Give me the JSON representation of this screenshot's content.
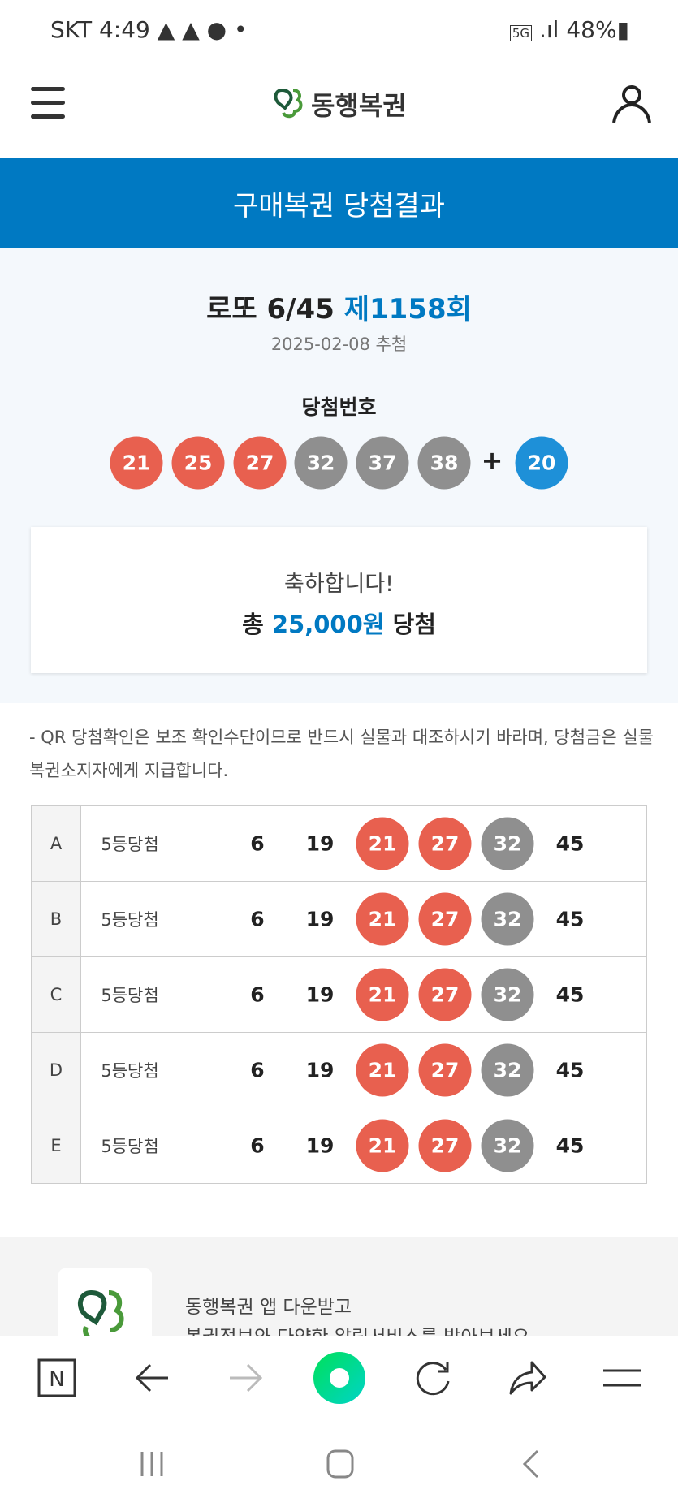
{
  "status": {
    "carrier": "SKT",
    "time": "4:49",
    "network": "5G",
    "battery": "48%"
  },
  "header": {
    "logo_text": "동행복권",
    "menu_icon": "hamburger-icon",
    "user_icon": "person-icon"
  },
  "banner": {
    "title": "구매복권 당첨결과"
  },
  "draw": {
    "game": "로또 6/45",
    "round": "제1158회",
    "date": "2025-02-08 추첨",
    "winning_label": "당첨번호",
    "numbers": [
      21,
      25,
      27,
      32,
      37,
      38
    ],
    "number_colors": [
      "red",
      "red",
      "red",
      "gray",
      "gray",
      "gray"
    ],
    "plus": "+",
    "bonus": 20
  },
  "prize": {
    "congrats": "축하합니다!",
    "prefix": "총",
    "amount": "25,000원",
    "suffix": "당첨"
  },
  "note": "- QR 당첨확인은 보조 확인수단이므로 반드시 실물과 대조하시기 바라며, 당첨금은 실물 복권소지자에게 지급합니다.",
  "tickets": [
    {
      "key": "A",
      "result": "5등당첨",
      "numbers": [
        6,
        19,
        21,
        27,
        32,
        45
      ],
      "matched": [
        "none",
        "none",
        "red",
        "red",
        "gray",
        "none"
      ]
    },
    {
      "key": "B",
      "result": "5등당첨",
      "numbers": [
        6,
        19,
        21,
        27,
        32,
        45
      ],
      "matched": [
        "none",
        "none",
        "red",
        "red",
        "gray",
        "none"
      ]
    },
    {
      "key": "C",
      "result": "5등당첨",
      "numbers": [
        6,
        19,
        21,
        27,
        32,
        45
      ],
      "matched": [
        "none",
        "none",
        "red",
        "red",
        "gray",
        "none"
      ]
    },
    {
      "key": "D",
      "result": "5등당첨",
      "numbers": [
        6,
        19,
        21,
        27,
        32,
        45
      ],
      "matched": [
        "none",
        "none",
        "red",
        "red",
        "gray",
        "none"
      ]
    },
    {
      "key": "E",
      "result": "5등당첨",
      "numbers": [
        6,
        19,
        21,
        27,
        32,
        45
      ],
      "matched": [
        "none",
        "none",
        "red",
        "red",
        "gray",
        "none"
      ]
    }
  ],
  "footer": {
    "line1": "동행복권 앱 다운받고",
    "line2": "복권정보와 다양한 알림서비스를 받아보세요"
  },
  "colors": {
    "banner": "#0079c2",
    "red_ball": "#e8604f",
    "gray_ball": "#8f8f8f",
    "bonus_ball": "#1e90d8"
  }
}
